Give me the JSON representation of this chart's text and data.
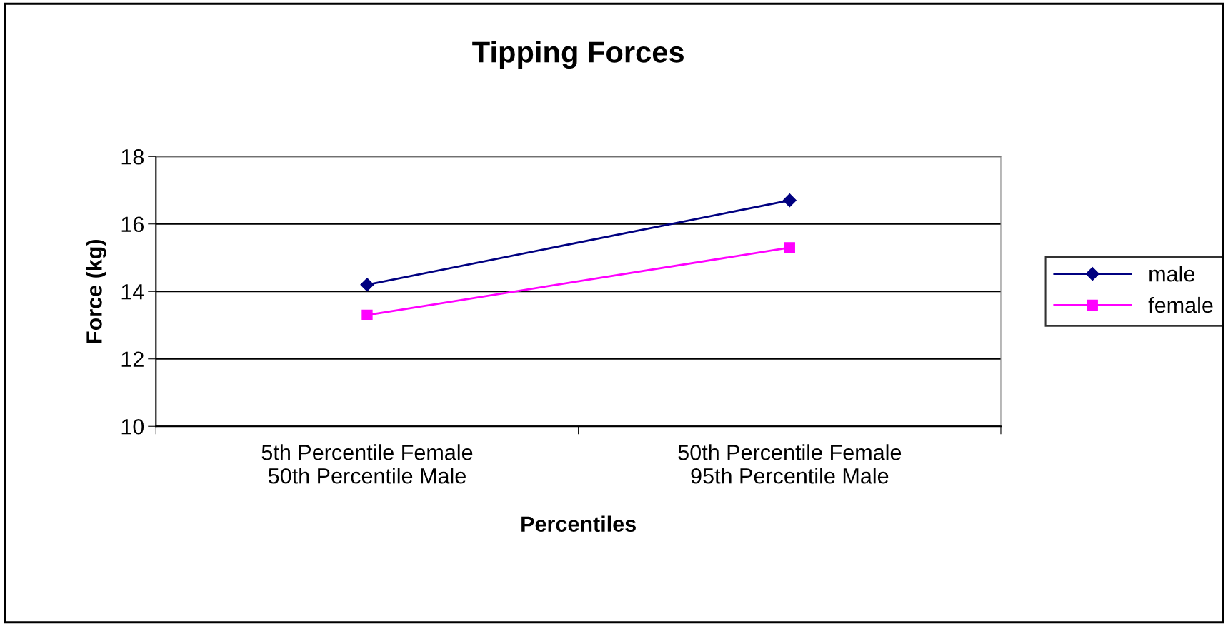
{
  "chart_data": {
    "type": "line",
    "title": "Tipping Forces",
    "xlabel": "Percentiles",
    "ylabel": "Force (kg)",
    "categories": [
      "5th Percentile Female\n50th Percentile Male",
      "50th Percentile Female\n95th Percentile Male"
    ],
    "series": [
      {
        "name": "male",
        "color": "#000080",
        "values": [
          14.2,
          16.7
        ],
        "marker": "diamond"
      },
      {
        "name": "female",
        "color": "#ff00ff",
        "values": [
          13.3,
          15.3
        ],
        "marker": "square"
      }
    ],
    "ylim": [
      10,
      18
    ],
    "yticks": [
      10,
      12,
      14,
      16,
      18
    ],
    "grid": "y",
    "legend": "right",
    "line_style": "solid"
  }
}
